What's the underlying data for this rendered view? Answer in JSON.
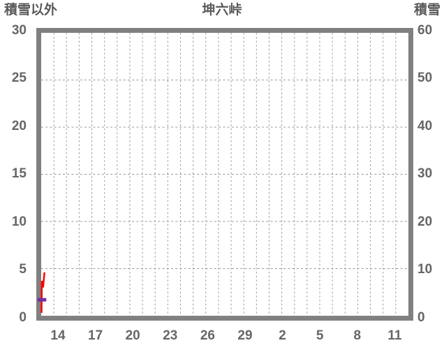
{
  "header": {
    "left_axis_title": "積雪以外",
    "chart_title": "坤六峠",
    "right_axis_title": "積雪"
  },
  "colors": {
    "frame": "#808080",
    "grid": "#999999",
    "text": "#666666",
    "series_other": "#ff0000",
    "series_snow": "#7030a0"
  },
  "chart_data": {
    "type": "line",
    "title": "坤六峠",
    "left_axis": {
      "title": "積雪以外",
      "min": 0,
      "max": 30,
      "tick_labels": [
        "30",
        "25",
        "20",
        "15",
        "10",
        "5",
        "0"
      ]
    },
    "right_axis": {
      "title": "積雪",
      "min": 0,
      "max": 60,
      "tick_labels": [
        "60",
        "50",
        "40",
        "30",
        "20",
        "10",
        "0"
      ]
    },
    "x_axis": {
      "tick_labels": [
        "14",
        "17",
        "20",
        "23",
        "26",
        "29",
        "2",
        "5",
        "8",
        "11"
      ],
      "days_shown": 29,
      "grid_interval_days": 1
    },
    "grid": {
      "on": true,
      "style": "dashed"
    },
    "legend": "none",
    "series": [
      {
        "name": "積雪以外",
        "axis": "left",
        "color": "#ff0000",
        "stroke_width": 2.5,
        "points_day_value": [
          [
            0.03,
            0.3
          ],
          [
            0.05,
            3.7
          ],
          [
            0.15,
            3.0
          ],
          [
            0.26,
            4.6
          ]
        ]
      },
      {
        "name": "積雪",
        "axis": "right",
        "color": "#7030a0",
        "stroke_width": 5,
        "points_day_value": [
          [
            -0.28,
            3.4
          ],
          [
            0.4,
            3.4
          ]
        ]
      }
    ]
  }
}
